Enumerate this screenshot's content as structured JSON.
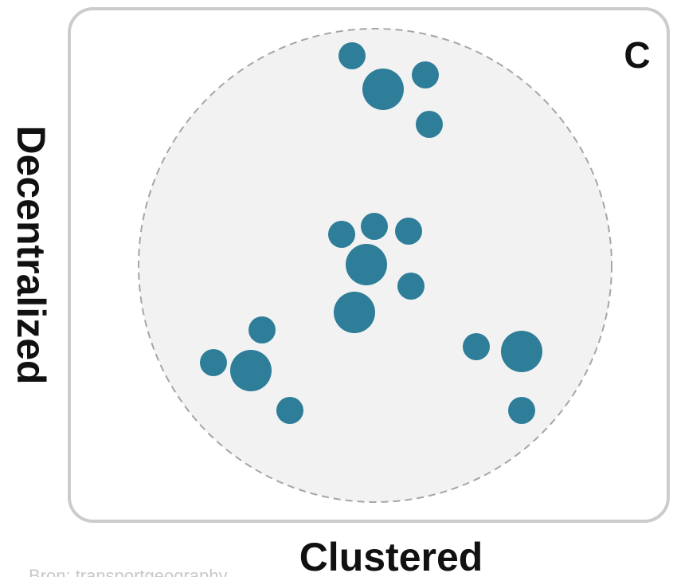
{
  "panel": {
    "letter": "C",
    "x_label": "Clustered",
    "y_label": "Decentralized",
    "source_text": "Bron: transportgeography"
  },
  "colors": {
    "node": "#2e7d99",
    "region_fill": "#f2f2f2",
    "region_border": "#a6a6a6",
    "frame_border": "#cccccc",
    "source_text": "#c8c8c8"
  },
  "clusters": [
    {
      "name": "top",
      "node_sizes": [
        "small",
        "large",
        "small",
        "small"
      ]
    },
    {
      "name": "center",
      "node_sizes": [
        "small",
        "small",
        "small",
        "large",
        "small",
        "large"
      ]
    },
    {
      "name": "bottom-left",
      "node_sizes": [
        "small",
        "small",
        "large",
        "small"
      ]
    },
    {
      "name": "bottom-right",
      "node_sizes": [
        "small",
        "large",
        "small"
      ]
    }
  ]
}
